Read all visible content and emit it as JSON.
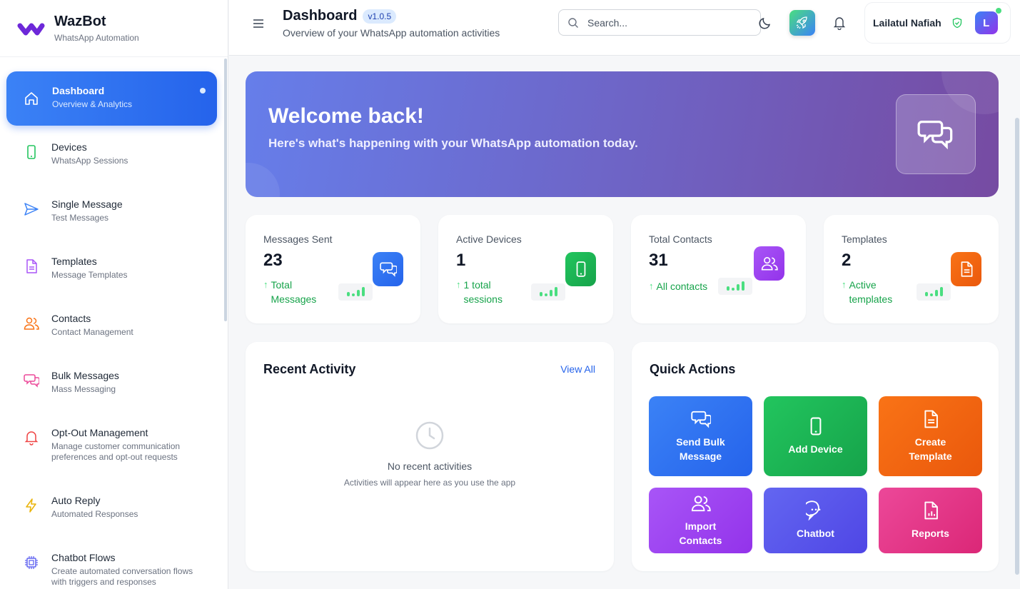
{
  "brand": {
    "name": "WazBot",
    "subtitle": "WhatsApp Automation",
    "logo_color": "#6d28d9"
  },
  "sidebar": {
    "items": [
      {
        "title": "Dashboard",
        "subtitle": "Overview & Analytics",
        "icon": "home-icon",
        "active": true
      },
      {
        "title": "Devices",
        "subtitle": "WhatsApp Sessions",
        "icon": "smartphone-icon",
        "color": "#22c55e"
      },
      {
        "title": "Single Message",
        "subtitle": "Test Messages",
        "icon": "send-icon",
        "color": "#3b82f6"
      },
      {
        "title": "Templates",
        "subtitle": "Message Templates",
        "icon": "file-text-icon",
        "color": "#a855f7"
      },
      {
        "title": "Contacts",
        "subtitle": "Contact Management",
        "icon": "users-icon",
        "color": "#f97316"
      },
      {
        "title": "Bulk Messages",
        "subtitle": "Mass Messaging",
        "icon": "messages-icon",
        "color": "#ec4899"
      },
      {
        "title": "Opt-Out Management",
        "subtitle": "Manage customer communication preferences and opt-out requests",
        "icon": "bell-icon",
        "color": "#ef4444"
      },
      {
        "title": "Auto Reply",
        "subtitle": "Automated Responses",
        "icon": "zap-icon",
        "color": "#eab308"
      },
      {
        "title": "Chatbot Flows",
        "subtitle": "Create automated conversation flows with triggers and responses",
        "icon": "cpu-icon",
        "color": "#6366f1"
      }
    ]
  },
  "header": {
    "title": "Dashboard",
    "version": "v1.0.5",
    "subtitle": "Overview of your WhatsApp automation activities",
    "search_placeholder": "Search...",
    "user_name": "Lailatul Nafiah",
    "avatar_initial": "L"
  },
  "banner": {
    "title": "Welcome back!",
    "subtitle": "Here's what's happening with your WhatsApp automation today."
  },
  "stats": [
    {
      "label": "Messages Sent",
      "value": "23",
      "trend": "Total Messages",
      "icon": "messages-icon",
      "color": "#3b82f6"
    },
    {
      "label": "Active Devices",
      "value": "1",
      "trend": "1 total sessions",
      "icon": "smartphone-icon",
      "color": "#22c55e"
    },
    {
      "label": "Total Contacts",
      "value": "31",
      "trend": "All contacts",
      "icon": "users-icon",
      "color": "#a855f7"
    },
    {
      "label": "Templates",
      "value": "2",
      "trend": "Active templates",
      "icon": "file-text-icon",
      "color": "#f97316"
    }
  ],
  "recent_activity": {
    "title": "Recent Activity",
    "view_all": "View All",
    "empty_title": "No recent activities",
    "empty_subtitle": "Activities will appear here as you use the app"
  },
  "quick_actions": {
    "title": "Quick Actions",
    "items": [
      {
        "label": "Send Bulk Message",
        "icon": "messages-icon",
        "color": "#3b82f6"
      },
      {
        "label": "Add Device",
        "icon": "smartphone-icon",
        "color": "#22c55e"
      },
      {
        "label": "Create Template",
        "icon": "file-text-icon",
        "color": "#f97316"
      },
      {
        "label": "Import Contacts",
        "icon": "users-icon",
        "color": "#a855f7"
      },
      {
        "label": "Chatbot",
        "icon": "chat-dots-icon",
        "color": "#6366f1"
      },
      {
        "label": "Reports",
        "icon": "report-icon",
        "color": "#ec4899"
      }
    ]
  }
}
